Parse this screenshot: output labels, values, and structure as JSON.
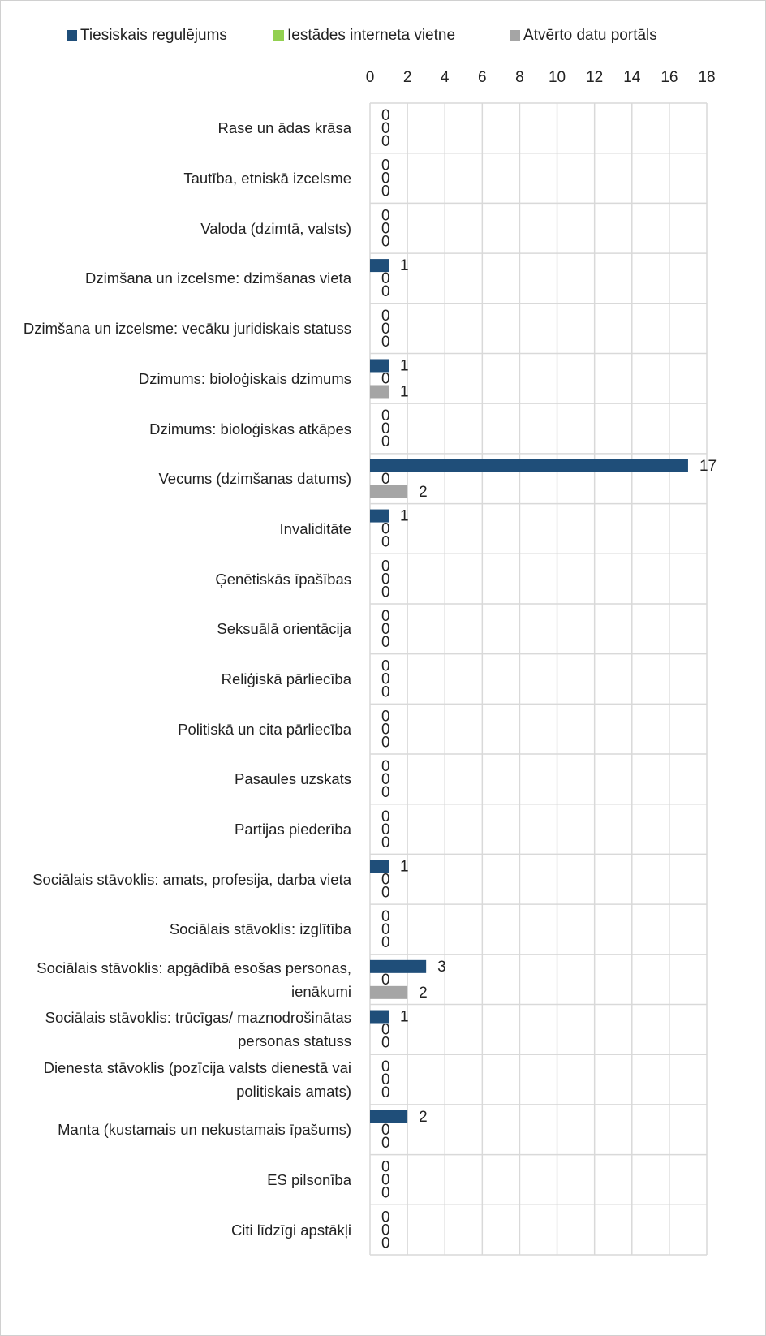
{
  "chart_data": {
    "type": "bar",
    "orientation": "horizontal",
    "categories": [
      "Rase un ādas krāsa",
      "Tautība, etniskā izcelsme",
      "Valoda (dzimtā, valsts)",
      "Dzimšana un izcelsme: dzimšanas vieta",
      "Dzimšana un izcelsme: vecāku juridiskais statuss",
      "Dzimums: bioloģiskais dzimums",
      "Dzimums: bioloģiskas atkāpes",
      "Vecums (dzimšanas datums)",
      "Invaliditāte",
      "Ģenētiskās īpašības",
      "Seksuālā orientācija",
      "Reliģiskā pārliecība",
      "Politiskā un cita pārliecība",
      "Pasaules uzskats",
      "Partijas piederība",
      "Sociālais stāvoklis: amats, profesija, darba vieta",
      "Sociālais stāvoklis: izglītība",
      "Sociālais stāvoklis: apgādībā esošas personas, ienākumi",
      "Sociālais stāvoklis: trūcīgas/ maznodrošinātas personas statuss",
      "Dienesta stāvoklis (pozīcija valsts dienestā vai politiskais amats)",
      "Manta (kustamais un nekustamais īpašums)",
      "ES pilsonība",
      "Citi līdzīgi apstākļi"
    ],
    "series": [
      {
        "name": "Tiesiskais regulējums",
        "color": "#1f4e79",
        "values": [
          0,
          0,
          0,
          1,
          0,
          1,
          0,
          17,
          1,
          0,
          0,
          0,
          0,
          0,
          0,
          1,
          0,
          3,
          1,
          0,
          2,
          0,
          0
        ]
      },
      {
        "name": "Iestādes interneta vietne",
        "color": "#92d050",
        "values": [
          0,
          0,
          0,
          0,
          0,
          0,
          0,
          0,
          0,
          0,
          0,
          0,
          0,
          0,
          0,
          0,
          0,
          0,
          0,
          0,
          0,
          0,
          0
        ]
      },
      {
        "name": "Atvērto datu portāls",
        "color": "#a5a5a5",
        "values": [
          0,
          0,
          0,
          0,
          0,
          1,
          0,
          2,
          0,
          0,
          0,
          0,
          0,
          0,
          0,
          0,
          0,
          2,
          0,
          0,
          0,
          0,
          0
        ]
      }
    ],
    "xlim": [
      0,
      18
    ],
    "xticks": [
      0,
      2,
      4,
      6,
      8,
      10,
      12,
      14,
      16,
      18
    ],
    "grid": true,
    "legend": "top"
  }
}
